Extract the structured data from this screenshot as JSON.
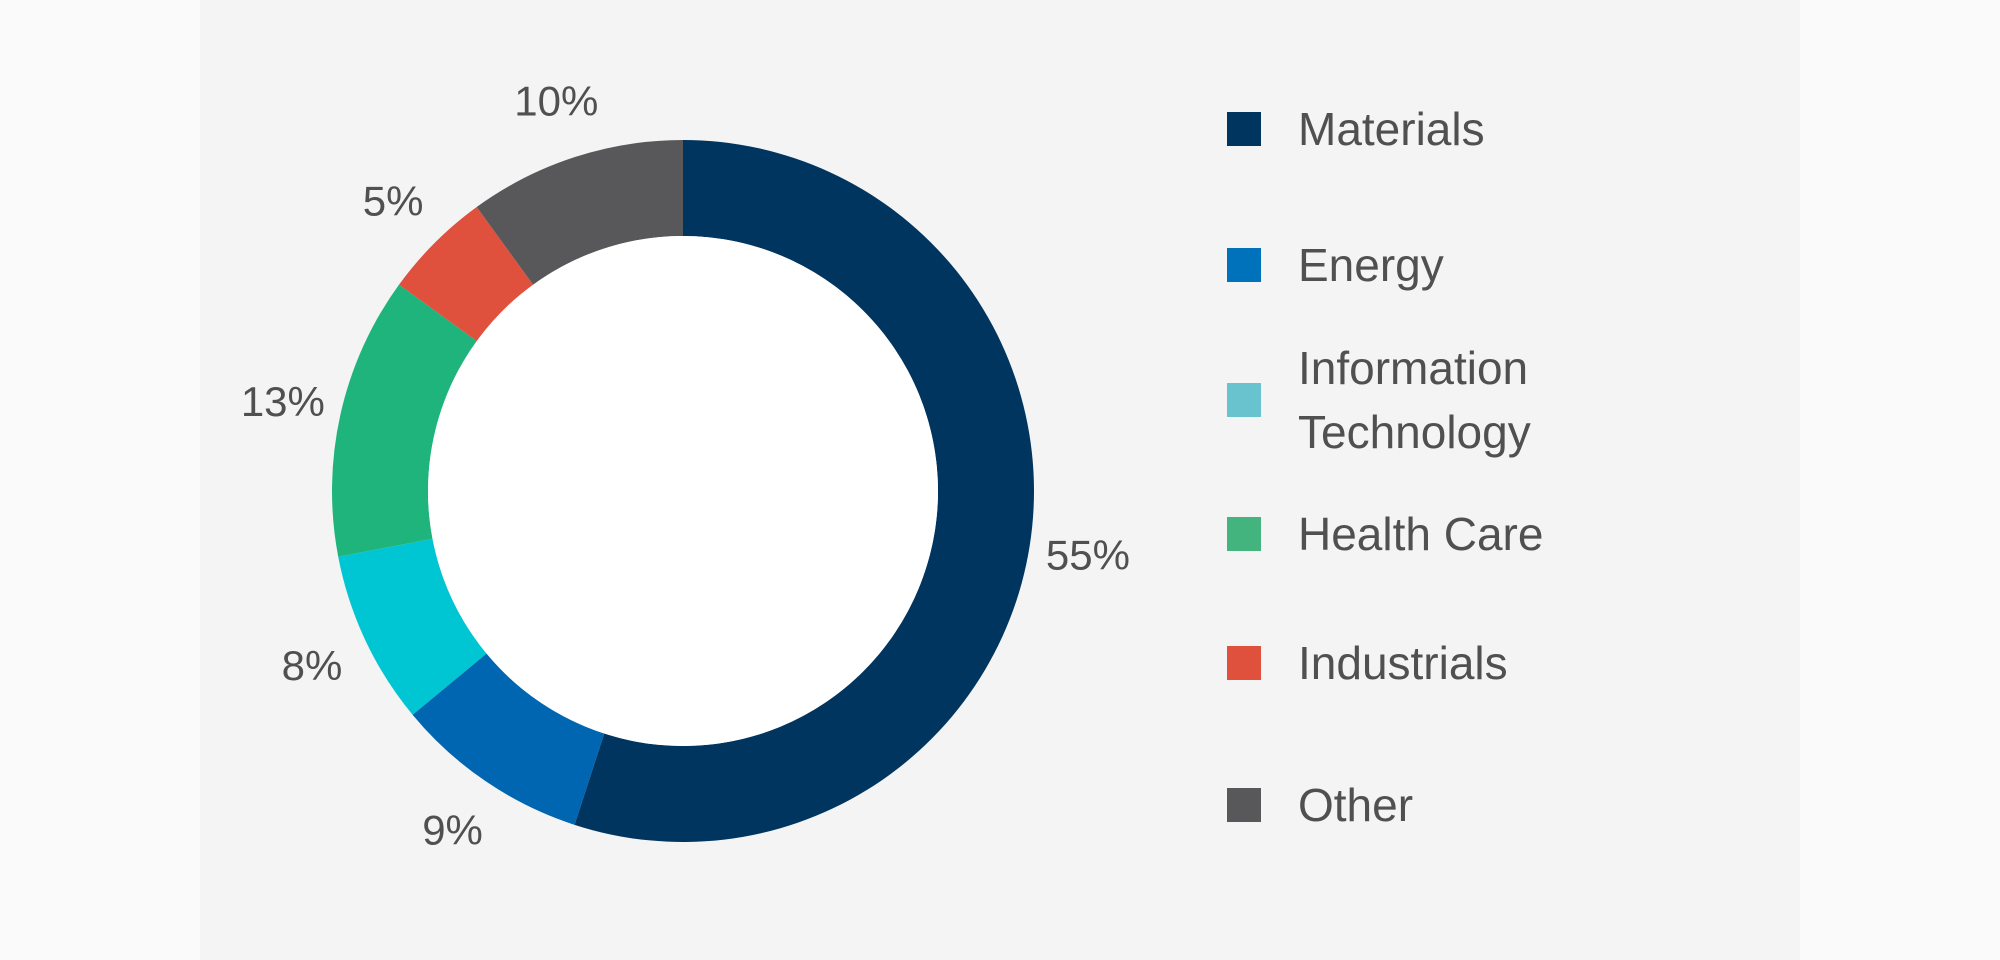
{
  "chart_data": {
    "type": "pie",
    "donut": true,
    "categories": [
      "Materials",
      "Energy",
      "Information Technology",
      "Health Care",
      "Industrials",
      "Other"
    ],
    "values": [
      55,
      9,
      8,
      13,
      5,
      10
    ],
    "labels": [
      "55%",
      "9%",
      "8%",
      "13%",
      "5%",
      "10%"
    ],
    "colors": [
      "#003560",
      "#0066b1",
      "#00c6d3",
      "#1eb47c",
      "#e0513d",
      "#58585a"
    ],
    "legend_colors": [
      "#003560",
      "#0072bb",
      "#68c3cf",
      "#43b47e",
      "#e0513d",
      "#58585a"
    ],
    "legend_position": "right",
    "start_angle": "12 o'clock",
    "direction": "clockwise"
  }
}
